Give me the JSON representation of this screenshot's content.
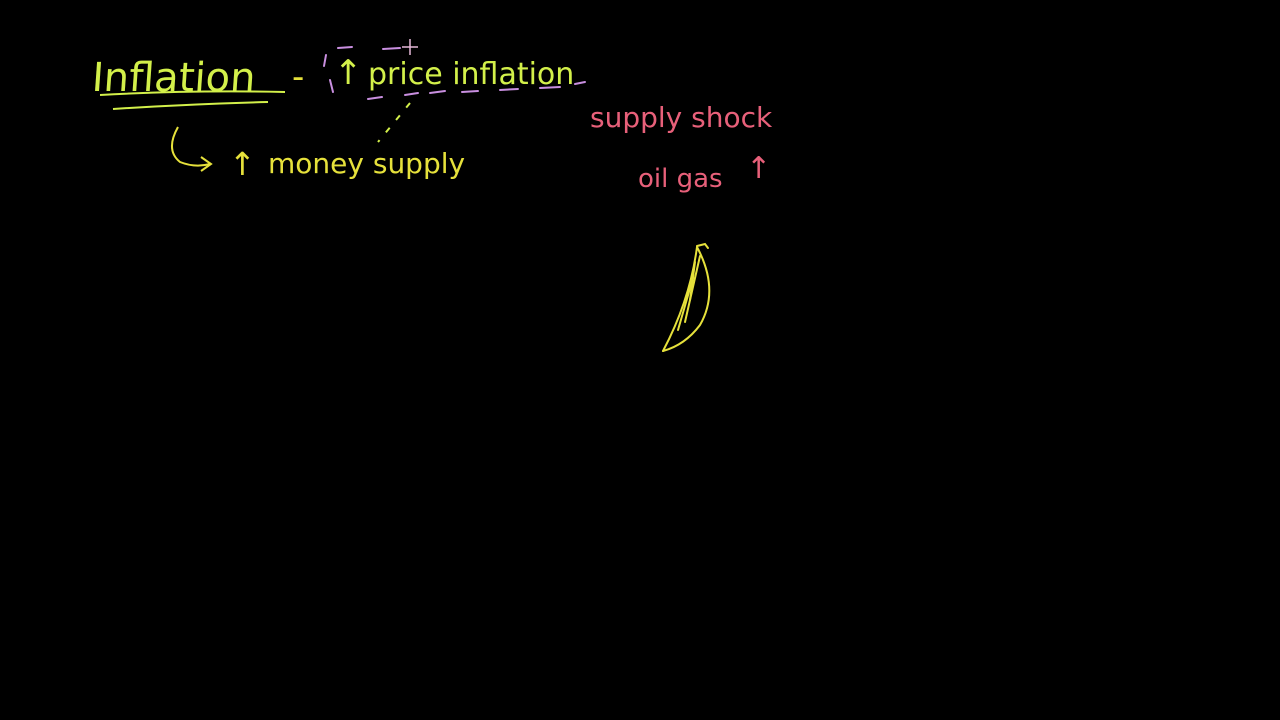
{
  "whiteboard": {
    "title_word": "Inflation",
    "dash": "-",
    "up_arrow": "↑",
    "price_inflation": "price inflation",
    "money_supply": "money supply",
    "supply_shock": "supply shock",
    "oil_gas": "oil gas",
    "oil_gas_arrow": "↑"
  },
  "colors": {
    "background": "#000000",
    "yellow_ink": "#e6e13b",
    "lime_ink": "#d3f04a",
    "pink_ink": "#e8607a",
    "violet_ink": "#c98fe0",
    "cursor": "#e6b8d8"
  },
  "icons": {
    "cursor": "crosshair-cursor-icon",
    "drawing": "banana-sketch"
  }
}
